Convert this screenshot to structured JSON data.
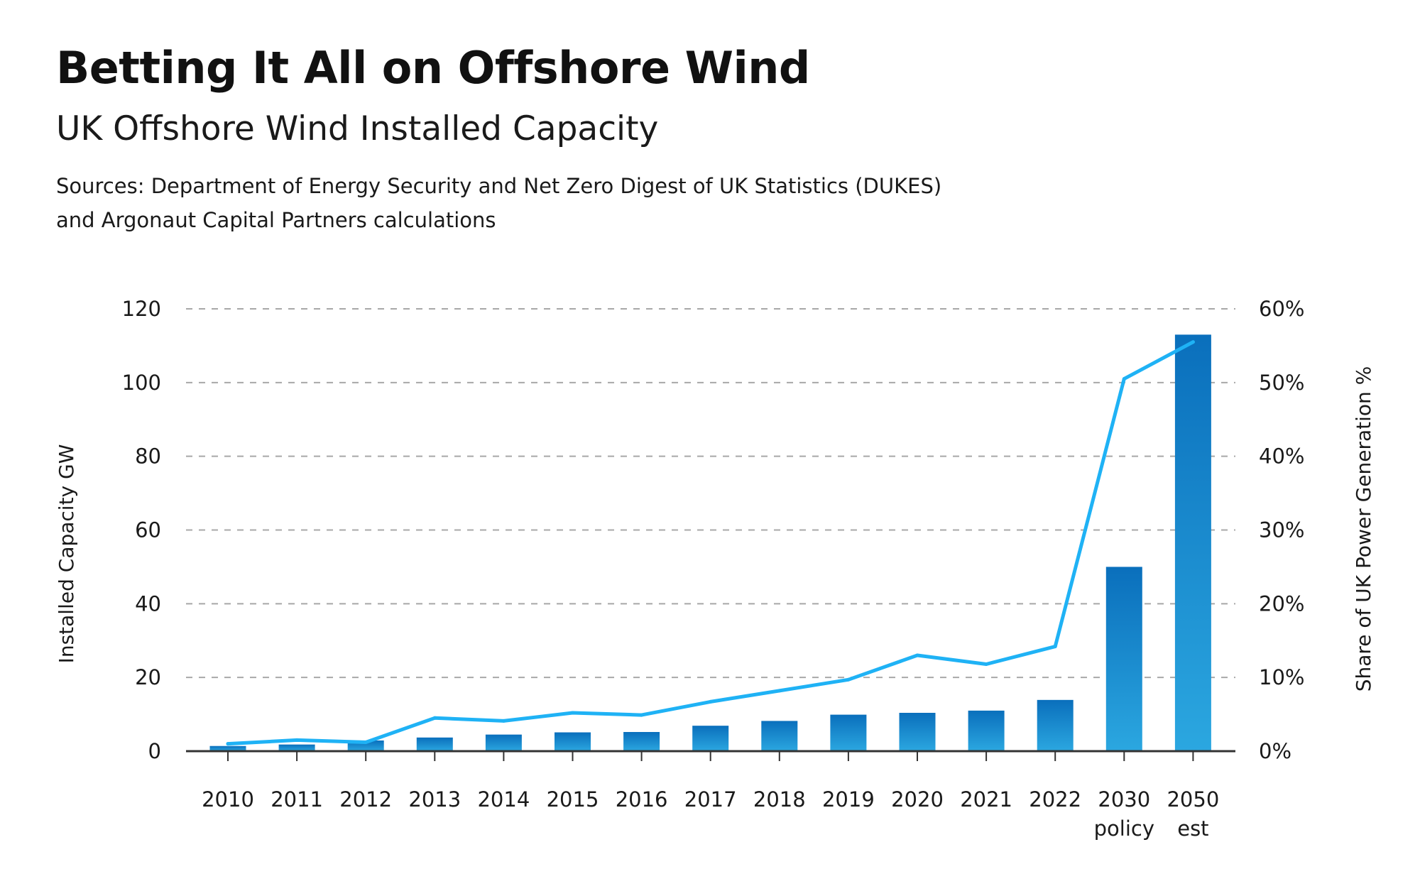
{
  "header": {
    "title": "Betting It All on Offshore Wind",
    "subtitle": "UK Offshore Wind Installed Capacity",
    "source_line1": "Sources: Department of Energy Security and Net Zero Digest of UK Statistics (DUKES)",
    "source_line2": "and Argonaut Capital Partners calculations"
  },
  "colors": {
    "bar_top": "#0a6fbc",
    "bar_bottom": "#2ba7e0",
    "line": "#1fb2f5",
    "grid": "#a8a8a8",
    "axis": "#333333"
  },
  "chart_data": {
    "type": "bar",
    "title": "UK Offshore Wind Installed Capacity",
    "categories": [
      "2010",
      "2011",
      "2012",
      "2013",
      "2014",
      "2015",
      "2016",
      "2017",
      "2018",
      "2019",
      "2020",
      "2021",
      "2022",
      "2030 policy",
      "2050 est"
    ],
    "category_labels": [
      [
        "2010"
      ],
      [
        "2011"
      ],
      [
        "2012"
      ],
      [
        "2013"
      ],
      [
        "2014"
      ],
      [
        "2015"
      ],
      [
        "2016"
      ],
      [
        "2017"
      ],
      [
        "2018"
      ],
      [
        "2019"
      ],
      [
        "2020"
      ],
      [
        "2021"
      ],
      [
        "2022"
      ],
      [
        "2030",
        "policy"
      ],
      [
        "2050",
        "est"
      ]
    ],
    "series": [
      {
        "name": "Installed Capacity GW",
        "type": "bar",
        "axis": "left",
        "values": [
          1.4,
          1.8,
          2.9,
          3.7,
          4.5,
          5.1,
          5.2,
          6.9,
          8.2,
          9.9,
          10.4,
          11.0,
          13.9,
          50,
          113
        ]
      },
      {
        "name": "Share of UK Power Generation %",
        "type": "line",
        "axis": "right",
        "values": [
          1.0,
          1.5,
          1.2,
          4.5,
          4.1,
          5.2,
          4.9,
          6.7,
          8.2,
          9.7,
          13.0,
          11.8,
          14.2,
          50.5,
          55.5
        ]
      }
    ],
    "ylabel": "Installed Capacity GW",
    "ylabel_right": "Share of UK Power Generation %",
    "ylim": [
      0,
      120
    ],
    "yticks": [
      "0",
      "20",
      "40",
      "60",
      "80",
      "100",
      "120"
    ],
    "ylim_right": [
      0,
      60
    ],
    "yticks_right": [
      "0%",
      "10%",
      "20%",
      "30%",
      "40%",
      "50%",
      "60%"
    ],
    "grid": true
  }
}
